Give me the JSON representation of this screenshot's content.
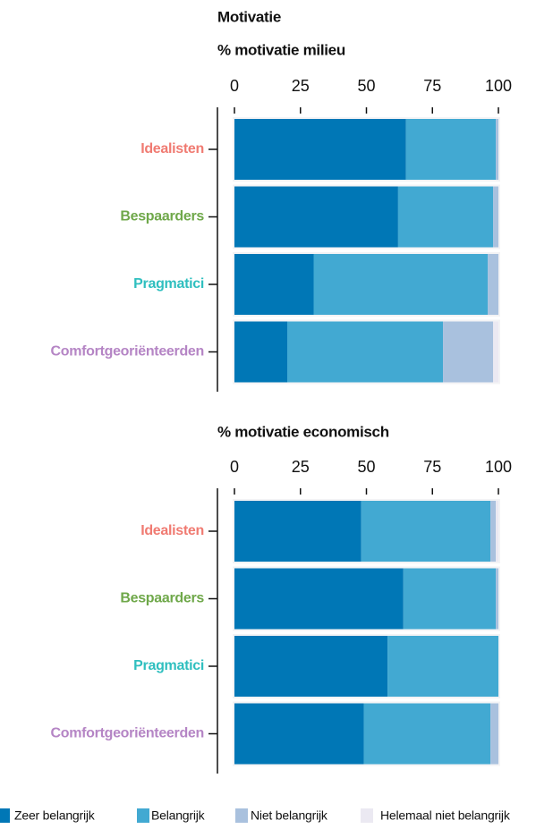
{
  "chart_data": [
    {
      "type": "stacked_bar",
      "title": "Motivatie",
      "subtitle": "% motivatie milieu",
      "categories": [
        "Idealisten",
        "Bespaarders",
        "Pragmatici",
        "Comfortgeoriënteerden"
      ],
      "category_colors": [
        "#f07b72",
        "#6fa84a",
        "#2fbfbf",
        "#b585c5"
      ],
      "series": [
        {
          "name": "Zeer belangrijk",
          "color": "#0077b6",
          "values": [
            65,
            62,
            30,
            20
          ]
        },
        {
          "name": "Belangrijk",
          "color": "#42a9d2",
          "values": [
            34,
            36,
            66,
            59
          ]
        },
        {
          "name": "Niet belangrijk",
          "color": "#a9c1de",
          "values": [
            1,
            2,
            4,
            19
          ]
        },
        {
          "name": "Helemaal niet belangrijk",
          "color": "#ebe9f2",
          "values": [
            0,
            0,
            0,
            2
          ]
        }
      ],
      "xlim": [
        0,
        100
      ],
      "xticks": [
        0,
        25,
        50,
        75,
        100
      ]
    },
    {
      "type": "stacked_bar",
      "subtitle": "% motivatie economisch",
      "categories": [
        "Idealisten",
        "Bespaarders",
        "Pragmatici",
        "Comfortgeoriënteerden"
      ],
      "category_colors": [
        "#f07b72",
        "#6fa84a",
        "#2fbfbf",
        "#b585c5"
      ],
      "series": [
        {
          "color": "#0077b6",
          "values": [
            48,
            64,
            58,
            49
          ]
        },
        {
          "color": "#42a9d2",
          "values": [
            49,
            35,
            42,
            48
          ]
        },
        {
          "color": "#a9c1de",
          "values": [
            2,
            1,
            0,
            3
          ]
        },
        {
          "color": "#ebe9f2",
          "values": [
            1,
            0,
            0,
            0
          ]
        }
      ],
      "xlim": [
        0,
        100
      ],
      "xticks": [
        0,
        25,
        50,
        75,
        100
      ]
    }
  ]
}
